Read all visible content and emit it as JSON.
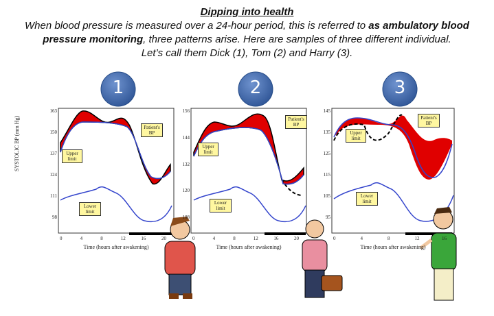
{
  "header": {
    "title": "Dipping into health",
    "intro": [
      "When blood pressure is measured over a 24-hour period, this is referred to ",
      "as ambulatory blood",
      "pressure monitoring",
      ", three patterns arise. Here are samples of three different individual."
    ],
    "closing": "Let’s call them Dick (1), Tom (2) and Harry (3)."
  },
  "y_label": "SYSTOLIC BP (mm Hg)",
  "panels": [
    {
      "number": "1",
      "y_ticks": [
        "163",
        "150",
        "137",
        "124",
        "111",
        "98"
      ],
      "x_ticks": [
        "0",
        "4",
        "8",
        "12",
        "16",
        "20"
      ],
      "x_label": "Time (hours after awakening)",
      "patient": "Patient's BP",
      "upper": "Upper limit",
      "lower": "Lower limit"
    },
    {
      "number": "2",
      "y_ticks": [
        "156",
        "144",
        "132",
        "120",
        "108"
      ],
      "x_ticks": [
        "0",
        "4",
        "8",
        "12",
        "16",
        "20"
      ],
      "x_label": "Time (hours after awakening)",
      "patient": "Patient's BP",
      "upper": "Upper limit",
      "lower": "Lower limit"
    },
    {
      "number": "3",
      "y_ticks": [
        "145",
        "135",
        "125",
        "115",
        "105",
        "95"
      ],
      "x_ticks": [
        "0",
        "4",
        "8",
        "12",
        "16"
      ],
      "x_label": "Time (hours after awakening)",
      "patient": "Patient's BP",
      "upper": "Upper limit",
      "lower": "Lower limit"
    }
  ]
}
